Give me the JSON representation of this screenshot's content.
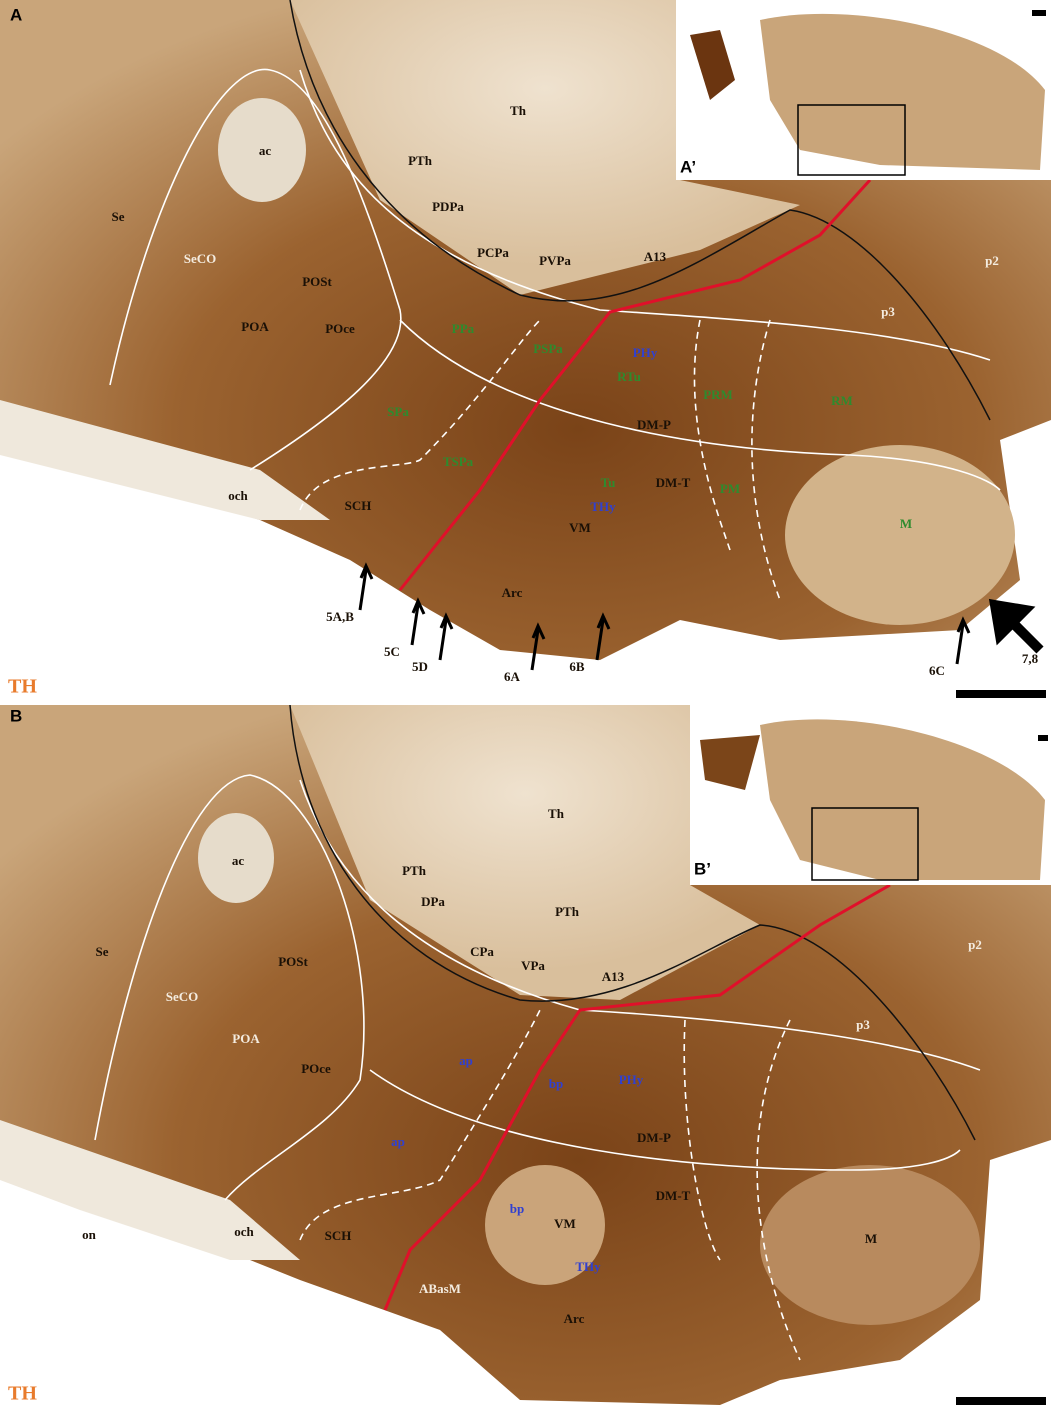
{
  "panels": [
    {
      "label": "A",
      "stain": "TH",
      "inset_label": "A’",
      "regions": [
        "Th",
        "ac",
        "Se",
        "SeCO",
        "PTh",
        "PDPa",
        "POSt",
        "PCPa",
        "PVPa",
        "A13",
        "p2",
        "p3",
        "POA",
        "POce",
        "PPa",
        "PSPa",
        "PHy",
        "RTu",
        "PRM",
        "RM",
        "SPa",
        "DM-P",
        "TSPa",
        "Tu",
        "DM-T",
        "PM",
        "THy",
        "och",
        "SCH",
        "VM",
        "M",
        "Arc"
      ],
      "arrows": [
        "5A,B",
        "5C",
        "5D",
        "6A",
        "6B",
        "6C",
        "7,8"
      ]
    },
    {
      "label": "B",
      "stain": "TH",
      "inset_label": "B’",
      "regions": [
        "Th",
        "ac",
        "PTh",
        "DPa",
        "PTh",
        "Se",
        "CPa",
        "VPa",
        "POSt",
        "A13",
        "SeCO",
        "p2",
        "POA",
        "p3",
        "ap",
        "POce",
        "bp",
        "PHy",
        "ap",
        "DM-P",
        "DM-T",
        "bp",
        "VM",
        "on",
        "och",
        "SCH",
        "M",
        "THy",
        "ABasM",
        "Arc"
      ],
      "arrows": []
    }
  ]
}
